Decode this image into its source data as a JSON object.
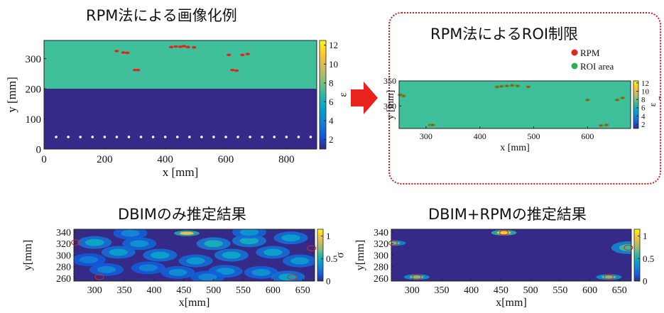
{
  "titles": {
    "rpm_imaging": "RPM法による画像化例",
    "roi_limit": "RPM法によるROI制限",
    "dbim_only": "DBIMのみ推定結果",
    "dbim_rpm": "DBIM+RPMの推定結果"
  },
  "colors": {
    "background_eps": "#3fbf9a",
    "substrate": "#352a87",
    "rpm_points": "#e8231d",
    "roi_area": "#2eb34a",
    "arrow": "#e8231d",
    "box_border": "#d21d1d"
  },
  "colormap": [
    "#352a87",
    "#0f5cdd",
    "#1481d6",
    "#06a4ca",
    "#2eb7a4",
    "#87bf77",
    "#d1bb59",
    "#fec832",
    "#f9fb0e"
  ],
  "chart_data": [
    {
      "id": "rpm_imaging",
      "type": "heatmap",
      "xlabel": "x [mm]",
      "ylabel": "y [mm]",
      "xlim": [
        0,
        900
      ],
      "ylim": [
        0,
        360
      ],
      "xticks": [
        0,
        200,
        400,
        600,
        800
      ],
      "yticks": [
        0,
        100,
        200,
        300
      ],
      "colorbar": {
        "label": "ε",
        "range": [
          1,
          12.5
        ],
        "ticks": [
          2,
          4,
          6,
          8,
          10,
          12
        ]
      },
      "layer_boundary_y": 200,
      "rpm_points": [
        {
          "x": 240,
          "y": 325
        },
        {
          "x": 262,
          "y": 320
        },
        {
          "x": 275,
          "y": 319
        },
        {
          "x": 300,
          "y": 262
        },
        {
          "x": 310,
          "y": 262
        },
        {
          "x": 420,
          "y": 338
        },
        {
          "x": 435,
          "y": 340
        },
        {
          "x": 450,
          "y": 339
        },
        {
          "x": 462,
          "y": 341
        },
        {
          "x": 475,
          "y": 338
        },
        {
          "x": 495,
          "y": 337
        },
        {
          "x": 610,
          "y": 312
        },
        {
          "x": 622,
          "y": 262
        },
        {
          "x": 635,
          "y": 260
        },
        {
          "x": 655,
          "y": 312
        },
        {
          "x": 672,
          "y": 315
        }
      ],
      "antenna_x": [
        40,
        80,
        120,
        160,
        200,
        240,
        280,
        320,
        360,
        400,
        440,
        480,
        520,
        560,
        600,
        640,
        680,
        720,
        760,
        800,
        840,
        880
      ],
      "antenna_y": 40
    },
    {
      "id": "roi_limit",
      "type": "heatmap",
      "xlabel": "x [mm]",
      "ylabel": "y [mm]",
      "xlim": [
        250,
        680
      ],
      "ylim": [
        255,
        350
      ],
      "xticks": [
        300,
        400,
        500,
        600
      ],
      "yticks": [
        300,
        350
      ],
      "colorbar": {
        "label": "ε",
        "sublabel": "r",
        "range": [
          1,
          12.5
        ],
        "ticks": [
          2,
          4,
          6,
          8,
          10,
          12
        ]
      },
      "legend": {
        "position": "top-right",
        "items": [
          "RPM",
          "ROI area"
        ]
      },
      "rpm_points": [
        {
          "x": 253,
          "y": 322
        },
        {
          "x": 258,
          "y": 320
        },
        {
          "x": 308,
          "y": 262
        },
        {
          "x": 312,
          "y": 262
        },
        {
          "x": 432,
          "y": 338
        },
        {
          "x": 440,
          "y": 339
        },
        {
          "x": 450,
          "y": 340
        },
        {
          "x": 460,
          "y": 341
        },
        {
          "x": 470,
          "y": 340
        },
        {
          "x": 490,
          "y": 338
        },
        {
          "x": 600,
          "y": 312
        },
        {
          "x": 625,
          "y": 261
        },
        {
          "x": 635,
          "y": 262
        },
        {
          "x": 655,
          "y": 312
        },
        {
          "x": 665,
          "y": 316
        }
      ]
    },
    {
      "id": "dbim_only",
      "type": "heatmap",
      "xlabel": "x[mm]",
      "ylabel": "y[mm]",
      "xlim": [
        265,
        670
      ],
      "ylim": [
        255,
        345
      ],
      "xticks": [
        300,
        350,
        400,
        450,
        500,
        550,
        600,
        650
      ],
      "yticks": [
        260,
        280,
        300,
        320,
        340
      ],
      "colorbar": {
        "label": "σ",
        "range": [
          0,
          1.15
        ],
        "ticks": [
          0,
          0.5,
          1
        ]
      },
      "blobs": [
        {
          "x": 300,
          "y": 322,
          "v": 0.45
        },
        {
          "x": 340,
          "y": 305,
          "v": 0.4
        },
        {
          "x": 375,
          "y": 320,
          "v": 0.35
        },
        {
          "x": 410,
          "y": 300,
          "v": 0.42
        },
        {
          "x": 455,
          "y": 338,
          "v": 0.95
        },
        {
          "x": 470,
          "y": 290,
          "v": 0.38
        },
        {
          "x": 500,
          "y": 320,
          "v": 0.5
        },
        {
          "x": 530,
          "y": 300,
          "v": 0.45
        },
        {
          "x": 560,
          "y": 325,
          "v": 0.48
        },
        {
          "x": 600,
          "y": 305,
          "v": 0.42
        },
        {
          "x": 630,
          "y": 330,
          "v": 0.4
        },
        {
          "x": 645,
          "y": 290,
          "v": 0.38
        },
        {
          "x": 320,
          "y": 275,
          "v": 0.3
        },
        {
          "x": 390,
          "y": 278,
          "v": 0.28
        },
        {
          "x": 440,
          "y": 270,
          "v": 0.32
        },
        {
          "x": 520,
          "y": 272,
          "v": 0.35
        },
        {
          "x": 580,
          "y": 270,
          "v": 0.34
        },
        {
          "x": 625,
          "y": 262,
          "v": 0.42
        },
        {
          "x": 360,
          "y": 338,
          "v": 0.3
        },
        {
          "x": 560,
          "y": 340,
          "v": 0.36
        },
        {
          "x": 290,
          "y": 292,
          "v": 0.26
        },
        {
          "x": 490,
          "y": 262,
          "v": 0.3
        }
      ],
      "circles": [
        {
          "x": 268,
          "y": 322
        },
        {
          "x": 308,
          "y": 262
        },
        {
          "x": 665,
          "y": 312
        },
        {
          "x": 632,
          "y": 262
        }
      ]
    },
    {
      "id": "dbim_rpm",
      "type": "heatmap",
      "xlabel": "x[mm]",
      "ylabel": "y[mm]",
      "xlim": [
        265,
        670
      ],
      "ylim": [
        255,
        345
      ],
      "xticks": [
        300,
        350,
        400,
        450,
        500,
        550,
        600,
        650
      ],
      "yticks": [
        260,
        280,
        300,
        320,
        340
      ],
      "colorbar": {
        "label": "",
        "range": [
          0,
          1.15
        ],
        "ticks": [
          0,
          0.5,
          1
        ]
      },
      "blobs": [
        {
          "x": 455,
          "y": 339,
          "v": 1.0
        },
        {
          "x": 268,
          "y": 321,
          "v": 0.65
        },
        {
          "x": 308,
          "y": 262,
          "v": 0.7
        },
        {
          "x": 665,
          "y": 313,
          "v": 0.6
        },
        {
          "x": 632,
          "y": 262,
          "v": 0.7
        }
      ],
      "circles": [
        {
          "x": 455,
          "y": 339
        },
        {
          "x": 268,
          "y": 321
        },
        {
          "x": 308,
          "y": 262
        },
        {
          "x": 665,
          "y": 313
        },
        {
          "x": 632,
          "y": 262
        }
      ]
    }
  ]
}
